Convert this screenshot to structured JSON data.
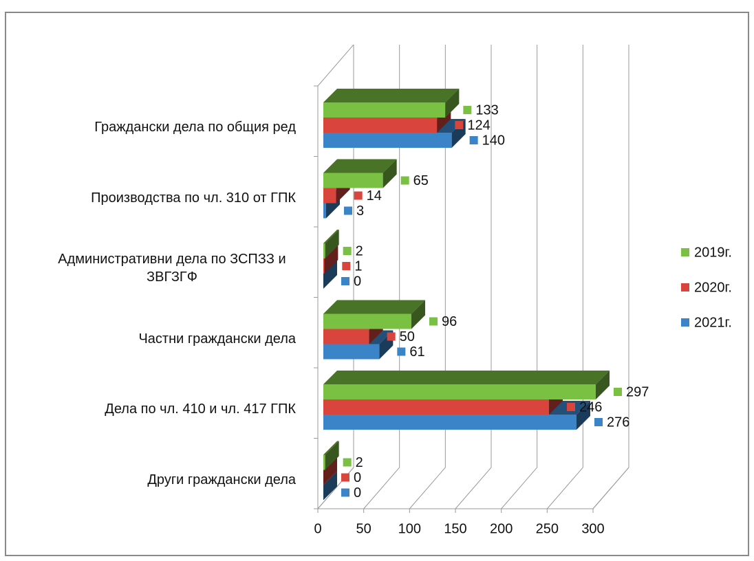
{
  "chart_data": {
    "type": "bar",
    "orientation": "horizontal",
    "three_d": true,
    "categories": [
      "Граждански дела по общия ред",
      "Производства по чл. 310 от ГПК",
      "Административни дела по ЗСПЗЗ и ЗВГЗГФ",
      "Частни граждански дела",
      "Дела по чл. 410 и чл. 417 ГПК",
      "Други граждански дела"
    ],
    "series": [
      {
        "name": "2019г.",
        "color": "#7ac143",
        "values": [
          133,
          65,
          2,
          96,
          297,
          2
        ]
      },
      {
        "name": "2020г.",
        "color": "#d9453c",
        "values": [
          124,
          14,
          1,
          50,
          246,
          0
        ]
      },
      {
        "name": "2021г.",
        "color": "#3c84c8",
        "values": [
          140,
          3,
          0,
          61,
          276,
          0
        ]
      }
    ],
    "xlim": [
      0,
      300
    ],
    "xticks": [
      0,
      50,
      100,
      150,
      200,
      250,
      300
    ],
    "grid": true,
    "legend": "right"
  }
}
